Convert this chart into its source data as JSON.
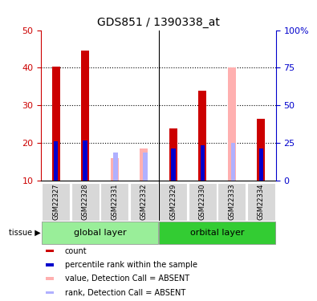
{
  "title": "GDS851 / 1390338_at",
  "samples": [
    "GSM22327",
    "GSM22328",
    "GSM22331",
    "GSM22332",
    "GSM22329",
    "GSM22330",
    "GSM22333",
    "GSM22334"
  ],
  "group1_label": "global layer",
  "group2_label": "orbital layer",
  "tissue_label": "tissue",
  "count_values": [
    40.2,
    44.5,
    0,
    0,
    23.8,
    34.0,
    0,
    26.5
  ],
  "rank_values": [
    26.0,
    26.5,
    0,
    0,
    21.5,
    23.5,
    0,
    21.5
  ],
  "absent_value": [
    0,
    0,
    16.0,
    18.5,
    0,
    0,
    40.0,
    0
  ],
  "absent_rank": [
    0,
    0,
    19.0,
    19.0,
    0,
    0,
    25.0,
    0
  ],
  "ylim_left": [
    10,
    50
  ],
  "ylim_right": [
    0,
    100
  ],
  "yticks_left": [
    10,
    20,
    30,
    40,
    50
  ],
  "yticks_right": [
    0,
    25,
    50,
    75,
    100
  ],
  "ytick_labels_right": [
    "0",
    "25",
    "50",
    "75",
    "100%"
  ],
  "color_count": "#cc0000",
  "color_rank": "#0000cc",
  "color_absent_value": "#ffb0b0",
  "color_absent_rank": "#b0b0ff",
  "color_group1_bg": "#99ee99",
  "color_group2_bg": "#33cc33",
  "legend_items": [
    {
      "color": "#cc0000",
      "label": "count"
    },
    {
      "color": "#0000cc",
      "label": "percentile rank within the sample"
    },
    {
      "color": "#ffb0b0",
      "label": "value, Detection Call = ABSENT"
    },
    {
      "color": "#b0b0ff",
      "label": "rank, Detection Call = ABSENT"
    }
  ]
}
